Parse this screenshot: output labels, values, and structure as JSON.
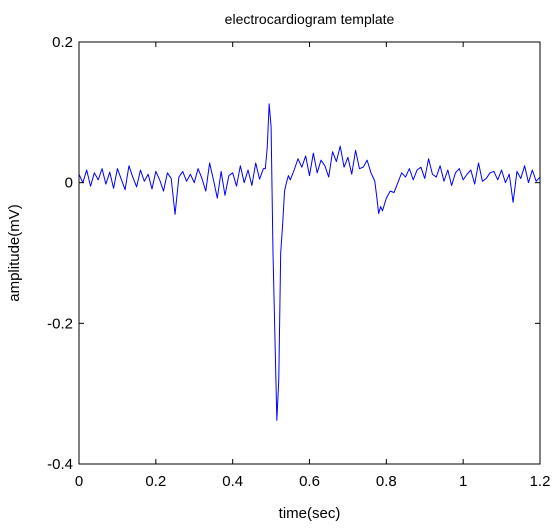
{
  "chart_data": {
    "type": "line",
    "title": "electrocardiogram template",
    "xlabel": "time(sec)",
    "ylabel": "amplitude(mV)",
    "xlim": [
      0,
      1.2
    ],
    "ylim": [
      -0.4,
      0.2
    ],
    "xticks": [
      0,
      0.2,
      0.4,
      0.6,
      0.8,
      1.0,
      1.2
    ],
    "xtick_labels": [
      "0",
      "0.2",
      "0.4",
      "0.6",
      "0.8",
      "1",
      "1.2"
    ],
    "yticks": [
      -0.4,
      -0.2,
      0,
      0.2
    ],
    "ytick_labels": [
      "-0.4",
      "-0.2",
      "0",
      "0.2"
    ],
    "grid": false,
    "line_color": "#0000ff",
    "series": [
      {
        "x": [
          0,
          0.01,
          0.02,
          0.03,
          0.04,
          0.05,
          0.06,
          0.07,
          0.08,
          0.09,
          0.1,
          0.11,
          0.12,
          0.13,
          0.14,
          0.15,
          0.16,
          0.17,
          0.18,
          0.19,
          0.2,
          0.21,
          0.22,
          0.23,
          0.24,
          0.25,
          0.26,
          0.27,
          0.28,
          0.29,
          0.3,
          0.31,
          0.32,
          0.33,
          0.34,
          0.35,
          0.36,
          0.37,
          0.38,
          0.39,
          0.4,
          0.41,
          0.42,
          0.43,
          0.44,
          0.45,
          0.46,
          0.47,
          0.48,
          0.485,
          0.49,
          0.495,
          0.5,
          0.505,
          0.51,
          0.515,
          0.52,
          0.525,
          0.53,
          0.535,
          0.54,
          0.545,
          0.55,
          0.56,
          0.57,
          0.58,
          0.59,
          0.6,
          0.61,
          0.62,
          0.63,
          0.64,
          0.65,
          0.66,
          0.67,
          0.68,
          0.69,
          0.7,
          0.71,
          0.72,
          0.73,
          0.74,
          0.75,
          0.76,
          0.77,
          0.775,
          0.78,
          0.785,
          0.79,
          0.8,
          0.81,
          0.82,
          0.83,
          0.84,
          0.85,
          0.86,
          0.87,
          0.88,
          0.89,
          0.9,
          0.91,
          0.92,
          0.93,
          0.94,
          0.95,
          0.96,
          0.97,
          0.98,
          0.99,
          1.0,
          1.01,
          1.02,
          1.03,
          1.04,
          1.05,
          1.06,
          1.07,
          1.08,
          1.09,
          1.1,
          1.11,
          1.12,
          1.13,
          1.14,
          1.15,
          1.16,
          1.17,
          1.18,
          1.19,
          1.2
        ],
        "y": [
          0.012,
          0.0,
          0.018,
          -0.005,
          0.014,
          0.004,
          0.02,
          -0.002,
          0.015,
          -0.008,
          0.02,
          0.005,
          -0.01,
          0.024,
          0.008,
          -0.006,
          0.018,
          0.002,
          0.012,
          -0.009,
          0.016,
          0.004,
          -0.012,
          0.014,
          0.006,
          -0.045,
          0.008,
          0.016,
          0.002,
          0.012,
          0.0,
          0.02,
          0.006,
          -0.012,
          0.028,
          0.004,
          -0.022,
          0.016,
          -0.018,
          0.01,
          0.014,
          -0.005,
          0.024,
          0.0,
          0.018,
          -0.004,
          0.028,
          0.005,
          0.02,
          0.02,
          0.05,
          0.112,
          0.08,
          -0.1,
          -0.22,
          -0.338,
          -0.28,
          -0.1,
          -0.06,
          -0.012,
          0.0,
          0.01,
          0.004,
          0.018,
          0.034,
          0.022,
          0.038,
          0.01,
          0.042,
          0.014,
          0.032,
          0.024,
          0.008,
          0.044,
          0.03,
          0.052,
          0.022,
          0.036,
          0.012,
          0.046,
          0.02,
          0.022,
          0.032,
          0.014,
          0.002,
          -0.02,
          -0.044,
          -0.034,
          -0.04,
          -0.022,
          -0.012,
          -0.014,
          0.0,
          0.014,
          0.008,
          0.02,
          0.004,
          0.018,
          0.022,
          0.006,
          0.034,
          0.012,
          0.008,
          0.024,
          0.002,
          0.018,
          -0.004,
          0.014,
          0.02,
          0.004,
          0.012,
          0.018,
          -0.002,
          0.028,
          0.002,
          0.006,
          0.014,
          0.016,
          0.004,
          0.018,
          0.0,
          0.012,
          -0.028,
          0.016,
          0.006,
          0.024,
          0.0,
          0.018,
          0.002,
          0.008
        ]
      }
    ]
  }
}
